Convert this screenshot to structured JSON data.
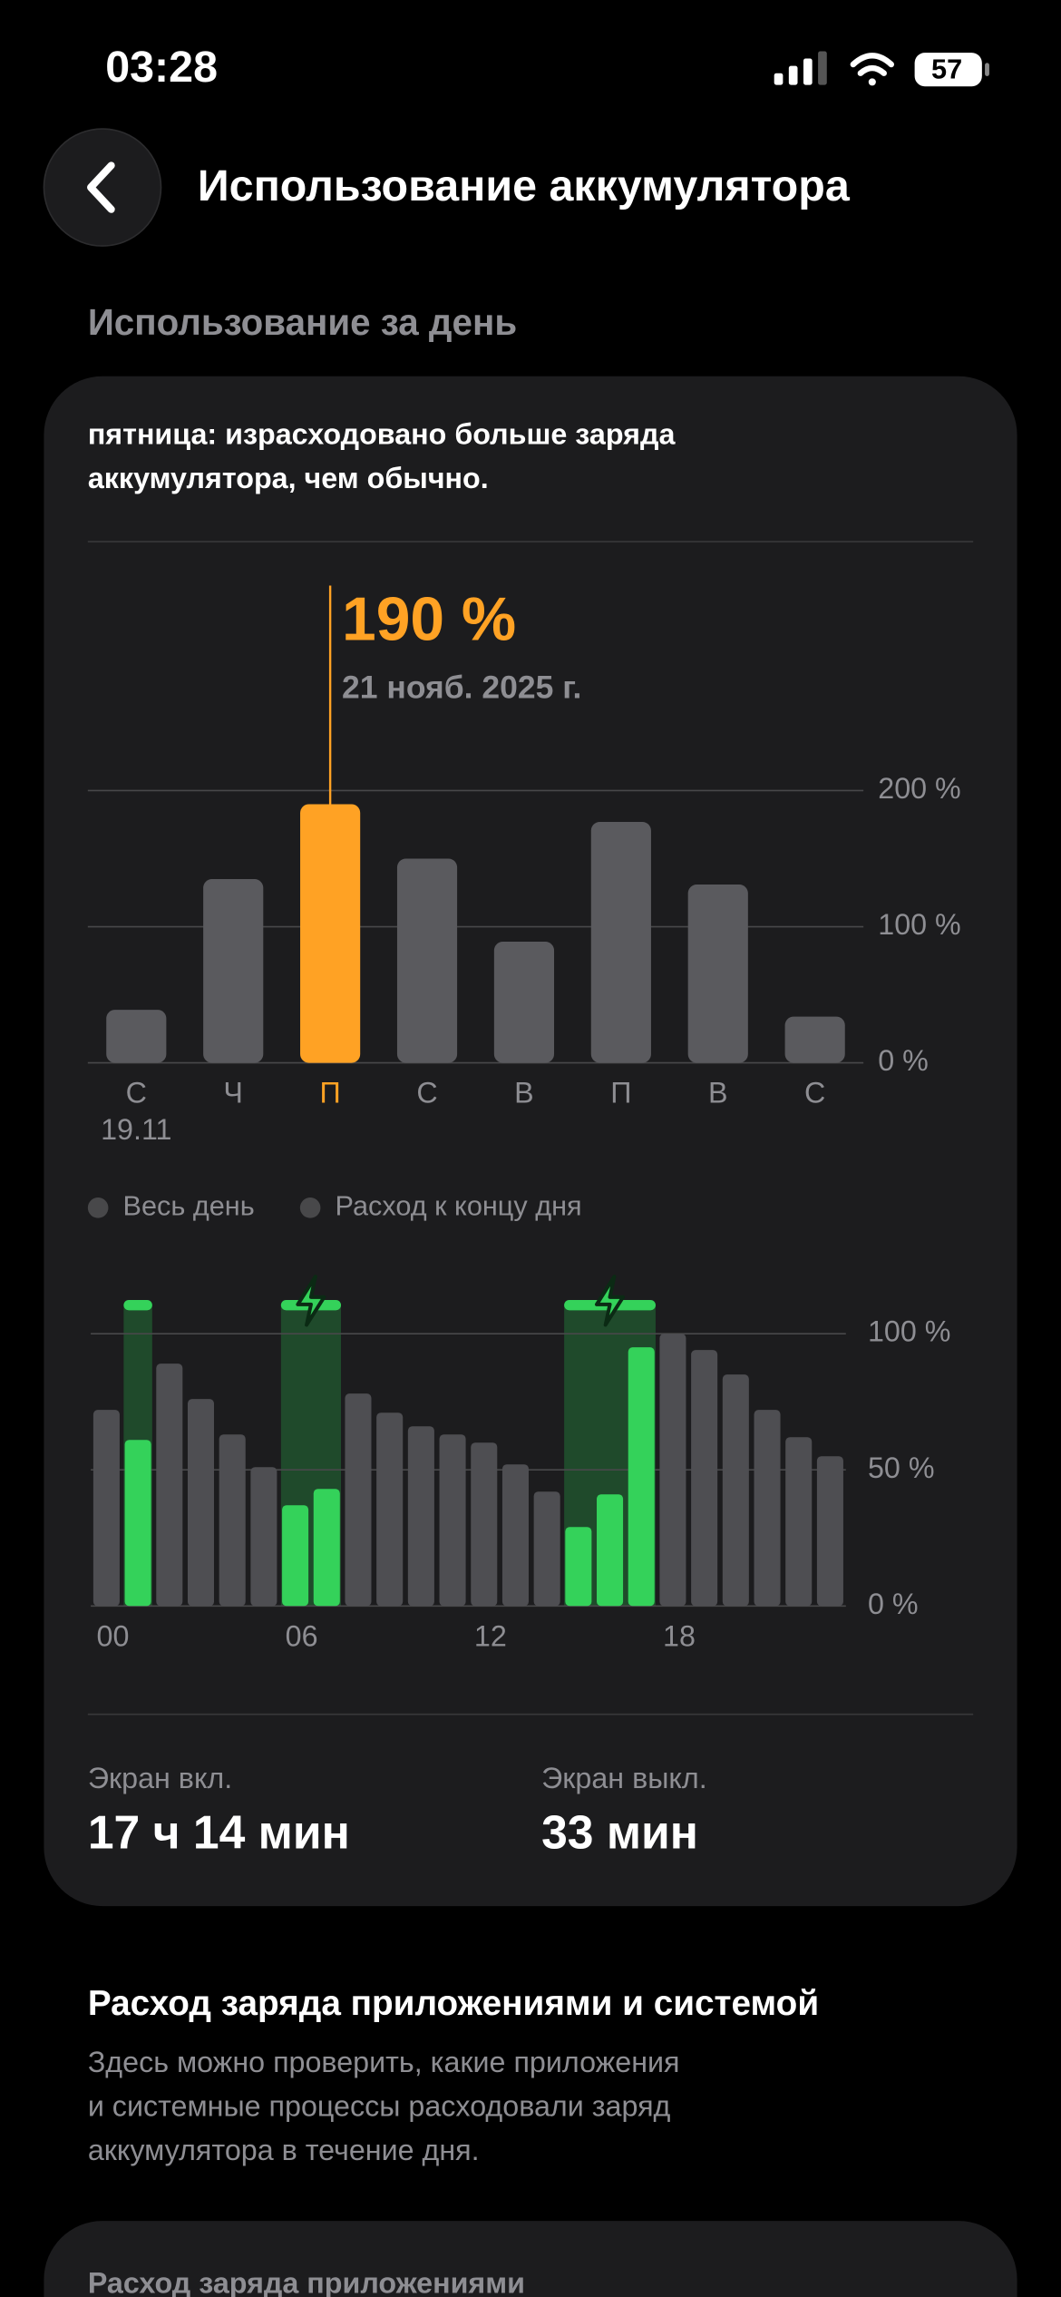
{
  "status": {
    "time": "03:28",
    "battery": "57"
  },
  "header": {
    "title": "Использование аккумулятора"
  },
  "section_title": "Использование за день",
  "note_lines": [
    "пятница: израсходовано больше заряда",
    "аккумулятора, чем обычно."
  ],
  "legend": [
    "Весь день",
    "Расход к концу дня"
  ],
  "screen_on": {
    "label": "Экран вкл.",
    "value": "17 ч 14 мин"
  },
  "screen_off": {
    "label": "Экран выкл.",
    "value": "33 мин"
  },
  "apps_section": {
    "title": "Расход заряда приложениями и системой",
    "description_lines": [
      "Здесь можно проверить, какие приложения",
      "и системные процессы расходовали заряд",
      "аккумулятора в течение дня."
    ]
  },
  "bottom_card_title": "Расход заряда приложениями",
  "chart_data": [
    {
      "type": "bar",
      "categories": [
        "С",
        "Ч",
        "П",
        "С",
        "В",
        "П",
        "В",
        "С"
      ],
      "first_date": "19.11",
      "values": [
        39,
        135,
        190,
        150,
        89,
        177,
        131,
        34
      ],
      "value_labels": [
        null,
        null,
        "190 %",
        null,
        null,
        null,
        null,
        null
      ],
      "annotation": "21 нояб. 2025 г.",
      "colors": [
        "#5a5a5e",
        "#5a5a5e",
        "#ffa224",
        "#5a5a5e",
        "#5a5a5e",
        "#5a5a5e",
        "#5a5a5e",
        "#5a5a5e"
      ],
      "ylim": [
        0,
        200
      ],
      "yticks": [
        {
          "value": 0,
          "label": "0 %"
        },
        {
          "value": 100,
          "label": "100 %"
        },
        {
          "value": 200,
          "label": "200 %"
        }
      ],
      "grid": true
    },
    {
      "type": "bar",
      "xlim": [
        0,
        24
      ],
      "xticks": [
        {
          "value": 0,
          "label": "00"
        },
        {
          "value": 6,
          "label": "06"
        },
        {
          "value": 12,
          "label": "12"
        },
        {
          "value": 18,
          "label": "18"
        }
      ],
      "series": [
        {
          "color": "#4e4e52",
          "values": [
            72,
            null,
            89,
            76,
            63,
            51,
            null,
            null,
            78,
            71,
            66,
            63,
            60,
            52,
            42,
            null,
            null,
            null,
            100,
            94,
            85,
            72,
            62,
            55
          ]
        },
        {
          "color": "#34d25a",
          "values": [
            null,
            61,
            null,
            null,
            null,
            null,
            37,
            43,
            null,
            null,
            null,
            null,
            null,
            null,
            null,
            29,
            41,
            95,
            null,
            null,
            null,
            null,
            null,
            null
          ]
        }
      ],
      "ylim": [
        0,
        100
      ],
      "yticks": [
        {
          "value": 0,
          "label": "0 %"
        },
        {
          "value": 50,
          "label": "50 %"
        },
        {
          "value": 100,
          "label": "100 %"
        }
      ],
      "grid": true
    }
  ]
}
